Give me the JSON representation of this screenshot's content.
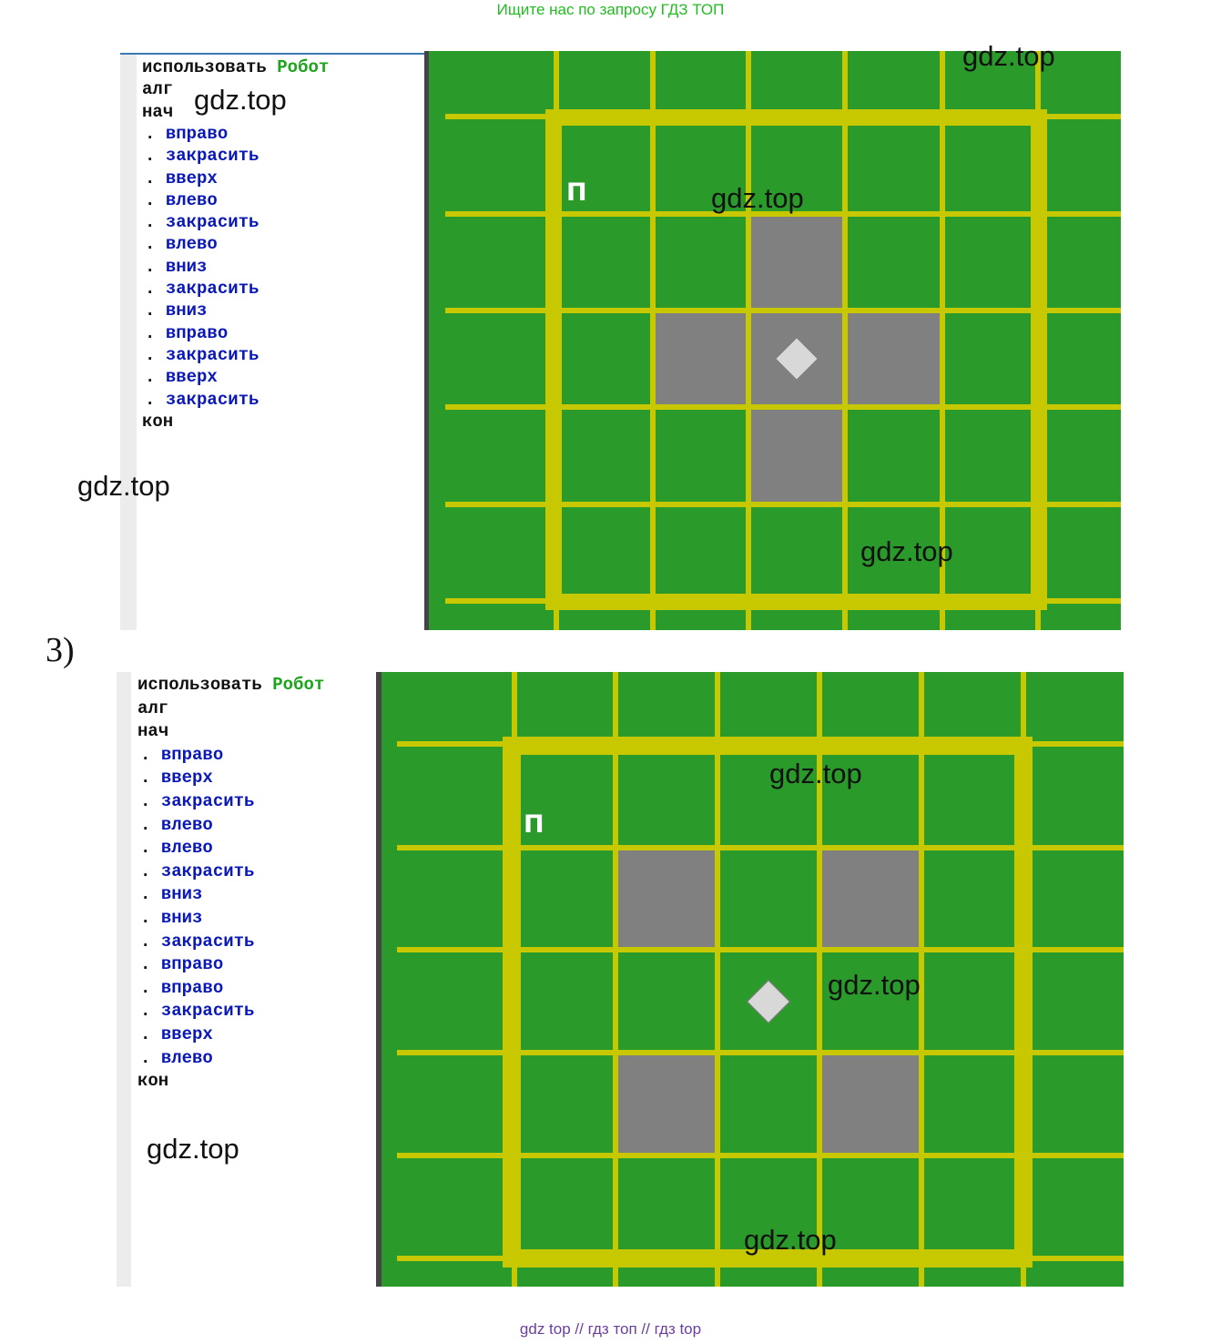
{
  "header": {
    "banner": "Ищите нас по запросу ГДЗ ТОП"
  },
  "footer": {
    "banner": "gdz top  //  гдз топ  //  гдз top"
  },
  "watermark": "gdz.top",
  "section3": {
    "label": "3)"
  },
  "program1": {
    "use_keyword": "использовать",
    "robot_keyword": "Робот",
    "alg": "алг",
    "begin": "нач",
    "bullet": ".",
    "commands": [
      "вправо",
      "закрасить",
      "вверх",
      "влево",
      "закрасить",
      "влево",
      "вниз",
      "закрасить",
      "вниз",
      "вправо",
      "закрасить",
      "вверх",
      "закрасить"
    ],
    "end": "кон"
  },
  "program2": {
    "use_keyword": "использовать",
    "robot_keyword": "Робот",
    "alg": "алг",
    "begin": "нач",
    "bullet": ".",
    "commands": [
      "вправо",
      "вверх",
      "закрасить",
      "влево",
      "влево",
      "закрасить",
      "вниз",
      "вниз",
      "закрасить",
      "вправо",
      "вправо",
      "закрасить",
      "вверх",
      "влево"
    ],
    "end": "кон"
  },
  "board1": {
    "marker": "П",
    "painted_cells": [
      [
        2,
        1
      ],
      [
        1,
        2
      ],
      [
        2,
        2
      ],
      [
        3,
        2
      ],
      [
        2,
        3
      ]
    ],
    "robot_cell": [
      2,
      2
    ]
  },
  "board2": {
    "marker": "П",
    "painted_cells": [
      [
        1,
        1
      ],
      [
        3,
        1
      ],
      [
        1,
        3
      ],
      [
        3,
        3
      ]
    ],
    "robot_cell": [
      2,
      2
    ]
  },
  "colors": {
    "field": "#2a9a2a",
    "grid": "#c8c800",
    "painted": "#808080",
    "robot": "#d8d8d8",
    "robot_keyword": "#1aa51a",
    "command": "#0a18b8"
  }
}
